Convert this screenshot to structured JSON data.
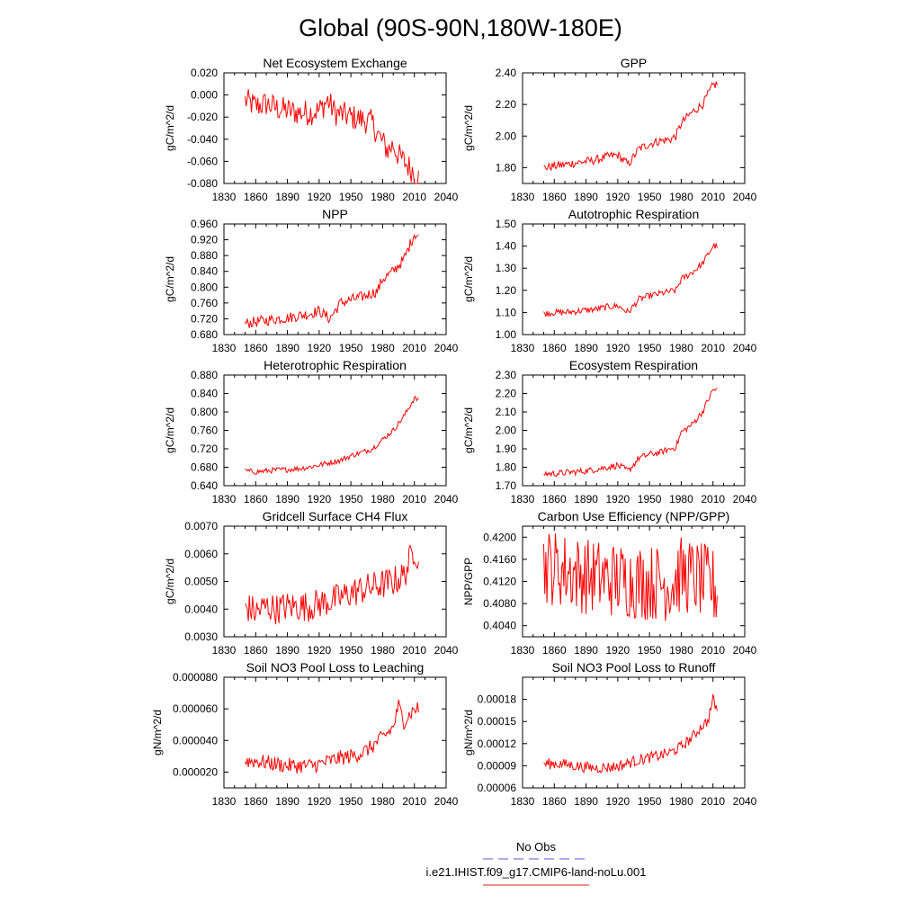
{
  "figure_title": "Global (90S-90N,180W-180E)",
  "legend": {
    "entries": [
      {
        "label": "No Obs",
        "color": "#5a5ad8",
        "style": "dashed"
      },
      {
        "label": "i.e21.IHIST.f09_g17.CMIP6-land-noLu.001",
        "color": "#e0201a",
        "style": "solid"
      }
    ]
  },
  "colors": {
    "series": "#ff0000",
    "axis": "#000000"
  },
  "chart_data": [
    {
      "type": "line",
      "title": "Net Ecosystem Exchange",
      "ylabel": "gC/m^2/d",
      "xlim": [
        1830,
        2040
      ],
      "ylim": [
        -0.08,
        0.02
      ],
      "xticks": [
        "1830",
        "1860",
        "1890",
        "1920",
        "1950",
        "1980",
        "2010",
        "2040"
      ],
      "yticks": [
        "0.020",
        "0.000",
        "-0.020",
        "-0.040",
        "-0.060",
        "-0.080"
      ],
      "yticks_values": [
        0.02,
        0.0,
        -0.02,
        -0.04,
        -0.06,
        -0.08
      ],
      "series": [
        {
          "x": [
            1850,
            1860,
            1870,
            1880,
            1890,
            1900,
            1910,
            1920,
            1928,
            1935,
            1940,
            1950,
            1960,
            1970,
            1978,
            1985,
            1990,
            1995,
            2000,
            2005,
            2010,
            2014
          ],
          "values": [
            -0.005,
            -0.01,
            -0.008,
            -0.012,
            -0.014,
            -0.016,
            -0.016,
            -0.014,
            -0.005,
            -0.016,
            -0.017,
            -0.02,
            -0.022,
            -0.025,
            -0.04,
            -0.05,
            -0.045,
            -0.055,
            -0.06,
            -0.065,
            -0.07,
            -0.075
          ]
        }
      ]
    },
    {
      "type": "line",
      "title": "GPP",
      "ylabel": "gC/m^2/d",
      "xlim": [
        1830,
        2040
      ],
      "ylim": [
        1.7,
        2.4
      ],
      "xticks": [
        "1830",
        "1860",
        "1890",
        "1920",
        "1950",
        "1980",
        "2010",
        "2040"
      ],
      "yticks": [
        "2.40",
        "2.20",
        "2.00",
        "1.80"
      ],
      "yticks_values": [
        2.4,
        2.2,
        2.0,
        1.8
      ],
      "series": [
        {
          "x": [
            1850,
            1860,
            1870,
            1880,
            1890,
            1900,
            1910,
            1920,
            1930,
            1940,
            1950,
            1960,
            1970,
            1975,
            1980,
            1990,
            2000,
            2010,
            2014
          ],
          "values": [
            1.8,
            1.81,
            1.82,
            1.83,
            1.84,
            1.85,
            1.87,
            1.88,
            1.82,
            1.92,
            1.95,
            1.97,
            1.98,
            2.0,
            2.08,
            2.15,
            2.2,
            2.32,
            2.33
          ]
        }
      ]
    },
    {
      "type": "line",
      "title": "NPP",
      "ylabel": "gC/m^2/d",
      "xlim": [
        1830,
        2040
      ],
      "ylim": [
        0.68,
        0.96
      ],
      "xticks": [
        "1830",
        "1860",
        "1890",
        "1920",
        "1950",
        "1980",
        "2010",
        "2040"
      ],
      "yticks": [
        "0.960",
        "0.920",
        "0.880",
        "0.840",
        "0.800",
        "0.760",
        "0.720",
        "0.680"
      ],
      "yticks_values": [
        0.96,
        0.92,
        0.88,
        0.84,
        0.8,
        0.76,
        0.72,
        0.68
      ],
      "series": [
        {
          "x": [
            1850,
            1860,
            1870,
            1880,
            1890,
            1900,
            1910,
            1920,
            1930,
            1940,
            1950,
            1960,
            1970,
            1975,
            1980,
            1990,
            2000,
            2010,
            2014
          ],
          "values": [
            0.708,
            0.712,
            0.716,
            0.72,
            0.722,
            0.728,
            0.732,
            0.74,
            0.72,
            0.76,
            0.768,
            0.775,
            0.785,
            0.79,
            0.82,
            0.84,
            0.87,
            0.935,
            0.93
          ]
        }
      ]
    },
    {
      "type": "line",
      "title": "Autotrophic Respiration",
      "ylabel": "gC/m^2/d",
      "xlim": [
        1830,
        2040
      ],
      "ylim": [
        1.0,
        1.5
      ],
      "xticks": [
        "1830",
        "1860",
        "1890",
        "1920",
        "1950",
        "1980",
        "2010",
        "2040"
      ],
      "yticks": [
        "1.50",
        "1.40",
        "1.30",
        "1.20",
        "1.10",
        "1.00"
      ],
      "yticks_values": [
        1.5,
        1.4,
        1.3,
        1.2,
        1.1,
        1.0
      ],
      "series": [
        {
          "x": [
            1850,
            1860,
            1870,
            1880,
            1890,
            1900,
            1910,
            1920,
            1930,
            1940,
            1950,
            1960,
            1970,
            1975,
            1980,
            1990,
            2000,
            2010,
            2014
          ],
          "values": [
            1.095,
            1.1,
            1.1,
            1.105,
            1.11,
            1.115,
            1.125,
            1.13,
            1.1,
            1.16,
            1.175,
            1.185,
            1.195,
            1.2,
            1.25,
            1.28,
            1.32,
            1.4,
            1.4
          ]
        }
      ]
    },
    {
      "type": "line",
      "title": "Heterotrophic Respiration",
      "ylabel": "gC/m^2/d",
      "xlim": [
        1830,
        2040
      ],
      "ylim": [
        0.64,
        0.88
      ],
      "xticks": [
        "1830",
        "1860",
        "1890",
        "1920",
        "1950",
        "1980",
        "2010",
        "2040"
      ],
      "yticks": [
        "0.880",
        "0.840",
        "0.800",
        "0.760",
        "0.720",
        "0.680",
        "0.640"
      ],
      "yticks_values": [
        0.88,
        0.84,
        0.8,
        0.76,
        0.72,
        0.68,
        0.64
      ],
      "series": [
        {
          "x": [
            1850,
            1860,
            1870,
            1880,
            1890,
            1900,
            1910,
            1920,
            1930,
            1940,
            1950,
            1960,
            1970,
            1980,
            1990,
            2000,
            2010,
            2014
          ],
          "values": [
            0.672,
            0.67,
            0.672,
            0.674,
            0.675,
            0.677,
            0.68,
            0.685,
            0.69,
            0.695,
            0.705,
            0.712,
            0.72,
            0.74,
            0.76,
            0.79,
            0.83,
            0.825
          ]
        }
      ]
    },
    {
      "type": "line",
      "title": "Ecosystem Respiration",
      "ylabel": "gC/m^2/d",
      "xlim": [
        1830,
        2040
      ],
      "ylim": [
        1.7,
        2.3
      ],
      "xticks": [
        "1830",
        "1860",
        "1890",
        "1920",
        "1950",
        "1980",
        "2010",
        "2040"
      ],
      "yticks": [
        "2.30",
        "2.20",
        "2.10",
        "2.00",
        "1.90",
        "1.80",
        "1.70"
      ],
      "yticks_values": [
        2.3,
        2.2,
        2.1,
        2.0,
        1.9,
        1.8,
        1.7
      ],
      "series": [
        {
          "x": [
            1850,
            1860,
            1870,
            1880,
            1890,
            1900,
            1910,
            1920,
            1930,
            1940,
            1950,
            1960,
            1970,
            1975,
            1980,
            1990,
            2000,
            2010,
            2014
          ],
          "values": [
            1.765,
            1.765,
            1.77,
            1.775,
            1.78,
            1.79,
            1.8,
            1.81,
            1.78,
            1.85,
            1.87,
            1.88,
            1.9,
            1.91,
            1.99,
            2.03,
            2.1,
            2.22,
            2.22
          ]
        }
      ]
    },
    {
      "type": "line",
      "title": "Gridcell Surface CH4 Flux",
      "ylabel": "gC/m^2/d",
      "xlim": [
        1830,
        2040
      ],
      "ylim": [
        0.003,
        0.007
      ],
      "xticks": [
        "1830",
        "1860",
        "1890",
        "1920",
        "1950",
        "1980",
        "2010",
        "2040"
      ],
      "yticks": [
        "0.0070",
        "0.0060",
        "0.0050",
        "0.0040",
        "0.0030"
      ],
      "yticks_values": [
        0.007,
        0.006,
        0.005,
        0.004,
        0.003
      ],
      "series": [
        {
          "x": [
            1850,
            1860,
            1870,
            1880,
            1890,
            1900,
            1910,
            1920,
            1930,
            1940,
            1950,
            1960,
            1970,
            1980,
            1990,
            2000,
            2010,
            2014
          ],
          "values": [
            0.0041,
            0.0039,
            0.0041,
            0.004,
            0.0041,
            0.0041,
            0.0041,
            0.0042,
            0.0043,
            0.0044,
            0.0046,
            0.0047,
            0.0048,
            0.0049,
            0.005,
            0.0052,
            0.0062,
            0.0058
          ]
        }
      ]
    },
    {
      "type": "line",
      "title": "Carbon Use Efficiency (NPP/GPP)",
      "ylabel": "NPP/GPP",
      "xlim": [
        1830,
        2040
      ],
      "ylim": [
        0.402,
        0.422
      ],
      "xticks": [
        "1830",
        "1860",
        "1890",
        "1920",
        "1950",
        "1980",
        "2010",
        "2040"
      ],
      "yticks": [
        "0.4200",
        "0.4160",
        "0.4120",
        "0.4080",
        "0.4040"
      ],
      "yticks_values": [
        0.42,
        0.416,
        0.412,
        0.408,
        0.404
      ],
      "series": [
        {
          "x": [
            1850,
            1860,
            1870,
            1880,
            1890,
            1900,
            1910,
            1920,
            1930,
            1940,
            1950,
            1960,
            1970,
            1980,
            1990,
            2000,
            2010,
            2014
          ],
          "values": [
            0.415,
            0.4145,
            0.414,
            0.4135,
            0.413,
            0.4128,
            0.4125,
            0.4123,
            0.4122,
            0.412,
            0.4118,
            0.4118,
            0.4115,
            0.4132,
            0.4128,
            0.412,
            0.4112,
            0.41
          ]
        }
      ]
    },
    {
      "type": "line",
      "title": "Soil NO3 Pool Loss to Leaching",
      "ylabel": "gN/m^2/d",
      "xlim": [
        1830,
        2040
      ],
      "ylim": [
        1e-05,
        8e-05
      ],
      "xticks": [
        "1830",
        "1860",
        "1890",
        "1920",
        "1950",
        "1980",
        "2010",
        "2040"
      ],
      "yticks": [
        "0.000080",
        "0.000060",
        "0.000040",
        "0.000020"
      ],
      "yticks_values": [
        8e-05,
        6e-05,
        4e-05,
        2e-05
      ],
      "series": [
        {
          "x": [
            1850,
            1860,
            1870,
            1880,
            1890,
            1900,
            1910,
            1920,
            1930,
            1940,
            1950,
            1960,
            1970,
            1980,
            1990,
            1995,
            2000,
            2010,
            2014
          ],
          "values": [
            2.7e-05,
            2.7e-05,
            2.6e-05,
            2.5e-05,
            2.4e-05,
            2.4e-05,
            2.4e-05,
            2.5e-05,
            2.7e-05,
            2.9e-05,
            3e-05,
            3.2e-05,
            3.6e-05,
            4.2e-05,
            4.8e-05,
            6.2e-05,
            5.2e-05,
            6e-05,
            6e-05
          ]
        }
      ]
    },
    {
      "type": "line",
      "title": "Soil NO3 Pool Loss to Runoff",
      "ylabel": "gN/m^2/d",
      "xlim": [
        1830,
        2040
      ],
      "ylim": [
        6e-05,
        0.00021
      ],
      "xticks": [
        "1830",
        "1860",
        "1890",
        "1920",
        "1950",
        "1980",
        "2010",
        "2040"
      ],
      "yticks": [
        "0.00018",
        "0.00015",
        "0.00012",
        "0.00009",
        "0.00006"
      ],
      "yticks_values": [
        0.00018,
        0.00015,
        0.00012,
        9e-05,
        6e-05
      ],
      "series": [
        {
          "x": [
            1850,
            1860,
            1870,
            1880,
            1890,
            1900,
            1910,
            1920,
            1930,
            1940,
            1950,
            1960,
            1970,
            1980,
            1990,
            2000,
            2005,
            2010,
            2014
          ],
          "values": [
            9.25e-05,
            9.3e-05,
            9.2e-05,
            9e-05,
            8.8e-05,
            8.7e-05,
            8.8e-05,
            8.9e-05,
            9.4e-05,
            9.8e-05,
            0.000101,
            0.000104,
            0.000108,
            0.000116,
            0.000128,
            0.000145,
            0.00015,
            0.00018,
            0.000165
          ]
        }
      ]
    }
  ]
}
